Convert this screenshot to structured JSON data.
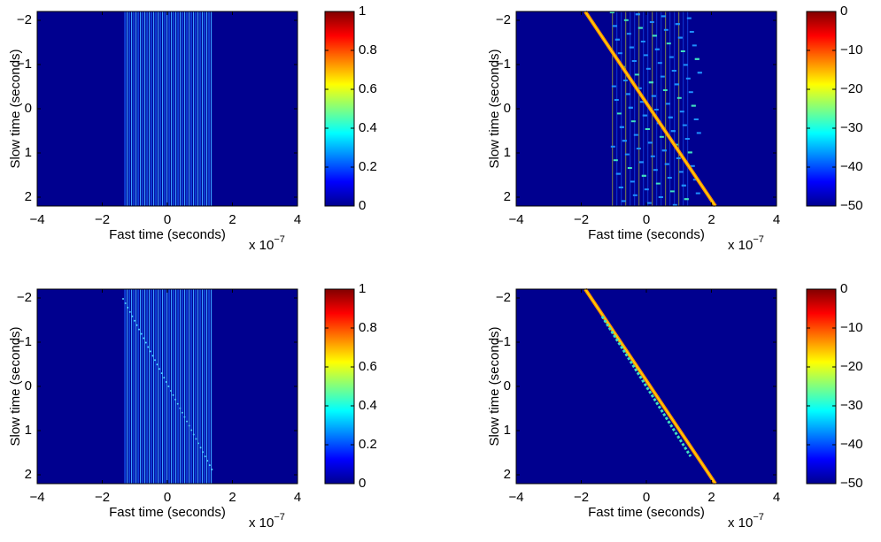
{
  "chart_data": [
    {
      "type": "heatmap",
      "colormap": "jet",
      "xlabel": "Fast time (seconds)",
      "ylabel": "Slow time (seconds)",
      "x_scale_label": "x 10",
      "x_scale_exponent": "−7",
      "xlim": [
        -4,
        4
      ],
      "xticks": [
        {
          "value": -4,
          "label": "−4"
        },
        {
          "value": -2,
          "label": "−2"
        },
        0,
        2,
        4
      ],
      "ylim": [
        -2.2,
        2.2
      ],
      "y_reversed": true,
      "yticks": [
        {
          "value": -2,
          "label": "−2"
        },
        {
          "value": -1,
          "label": "−1"
        },
        0,
        1,
        2
      ],
      "colorbar": {
        "clim": [
          0,
          1
        ],
        "ticks": [
          0,
          0.2,
          0.4,
          0.6,
          0.8,
          1
        ]
      }
    },
    {
      "type": "heatmap",
      "colormap": "jet",
      "xlabel": "Fast time (seconds)",
      "ylabel": "Slow time (seconds)",
      "x_scale_label": "x 10",
      "x_scale_exponent": "−7",
      "xlim": [
        -4,
        4
      ],
      "xticks": [
        {
          "value": -4,
          "label": "−4"
        },
        {
          "value": -2,
          "label": "−2"
        },
        0,
        2,
        4
      ],
      "ylim": [
        -2.2,
        2.2
      ],
      "y_reversed": true,
      "yticks": [
        {
          "value": -2,
          "label": "−2"
        },
        {
          "value": -1,
          "label": "−1"
        },
        0,
        1,
        2
      ],
      "colorbar": {
        "clim": [
          -50,
          0
        ],
        "ticks": [
          {
            "value": -50,
            "label": "−50"
          },
          {
            "value": -40,
            "label": "−40"
          },
          {
            "value": -30,
            "label": "−30"
          },
          {
            "value": -20,
            "label": "−20"
          },
          {
            "value": -10,
            "label": "−10"
          },
          0
        ]
      }
    },
    {
      "type": "heatmap",
      "colormap": "jet",
      "xlabel": "Fast time (seconds)",
      "ylabel": "Slow time (seconds)",
      "x_scale_label": "x 10",
      "x_scale_exponent": "−7",
      "xlim": [
        -4,
        4
      ],
      "xticks": [
        {
          "value": -4,
          "label": "−4"
        },
        {
          "value": -2,
          "label": "−2"
        },
        0,
        2,
        4
      ],
      "ylim": [
        -2.2,
        2.2
      ],
      "y_reversed": true,
      "yticks": [
        {
          "value": -2,
          "label": "−2"
        },
        {
          "value": -1,
          "label": "−1"
        },
        0,
        1,
        2
      ],
      "colorbar": {
        "clim": [
          0,
          1
        ],
        "ticks": [
          0,
          0.2,
          0.4,
          0.6,
          0.8,
          1
        ]
      }
    },
    {
      "type": "heatmap",
      "colormap": "jet",
      "xlabel": "Fast time (seconds)",
      "ylabel": "Slow time (seconds)",
      "x_scale_label": "x 10",
      "x_scale_exponent": "−7",
      "xlim": [
        -4,
        4
      ],
      "xticks": [
        {
          "value": -4,
          "label": "−4"
        },
        {
          "value": -2,
          "label": "−2"
        },
        0,
        2,
        4
      ],
      "ylim": [
        -2.2,
        2.2
      ],
      "y_reversed": true,
      "yticks": [
        {
          "value": -2,
          "label": "−2"
        },
        {
          "value": -1,
          "label": "−1"
        },
        0,
        1,
        2
      ],
      "colorbar": {
        "clim": [
          -50,
          0
        ],
        "ticks": [
          {
            "value": -50,
            "label": "−50"
          },
          {
            "value": -40,
            "label": "−40"
          },
          {
            "value": -30,
            "label": "−30"
          },
          {
            "value": -20,
            "label": "−20"
          },
          {
            "value": -10,
            "label": "−10"
          },
          0
        ]
      }
    }
  ]
}
